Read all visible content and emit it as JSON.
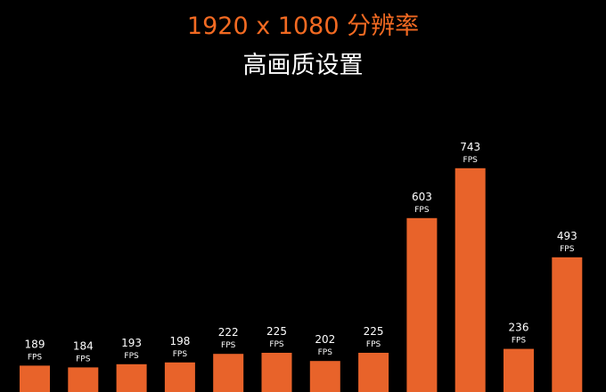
{
  "chart_data": {
    "type": "bar",
    "title": "1920 x 1080 分辨率",
    "subtitle": "高画质设置",
    "unit": "FPS",
    "values": [
      189,
      184,
      193,
      198,
      222,
      225,
      202,
      225,
      603,
      743,
      236,
      493
    ],
    "bar_color": "#e8632a",
    "title_color": "#f26a22",
    "text_color": "#ffffff",
    "background": "#000000",
    "grid": false,
    "legend": "none"
  }
}
